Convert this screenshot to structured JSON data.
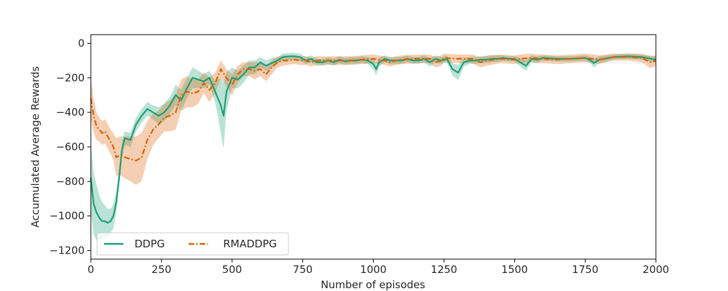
{
  "chart_data": {
    "type": "line",
    "title": "",
    "xlabel": "Number of episodes",
    "ylabel": "Accumulated Average Rewards",
    "xlim": [
      0,
      2000
    ],
    "ylim": [
      -1250,
      50
    ],
    "xticks": [
      0,
      250,
      500,
      750,
      1000,
      1250,
      1500,
      1750,
      2000
    ],
    "yticks": [
      0,
      -200,
      -400,
      -600,
      -800,
      -1000,
      -1200
    ],
    "grid": false,
    "legend": {
      "placement": "lower-left",
      "columns": 2
    },
    "series": [
      {
        "name": "DDPG",
        "color": "#1b9e77",
        "linestyle": "solid",
        "x": [
          0,
          10,
          20,
          30,
          40,
          50,
          60,
          70,
          80,
          90,
          100,
          110,
          120,
          140,
          160,
          180,
          200,
          220,
          240,
          260,
          280,
          300,
          320,
          340,
          360,
          380,
          400,
          420,
          440,
          460,
          470,
          480,
          500,
          520,
          540,
          560,
          580,
          600,
          620,
          640,
          660,
          680,
          700,
          720,
          740,
          760,
          780,
          800,
          820,
          840,
          860,
          880,
          900,
          920,
          940,
          960,
          980,
          1000,
          1010,
          1020,
          1040,
          1060,
          1080,
          1100,
          1120,
          1140,
          1160,
          1180,
          1200,
          1220,
          1240,
          1260,
          1280,
          1300,
          1310,
          1320,
          1340,
          1360,
          1380,
          1400,
          1420,
          1440,
          1460,
          1480,
          1500,
          1520,
          1540,
          1560,
          1580,
          1600,
          1650,
          1700,
          1750,
          1770,
          1780,
          1800,
          1850,
          1900,
          1950,
          2000
        ],
        "values": [
          -780,
          -930,
          -980,
          -1010,
          -1030,
          -1030,
          -1040,
          -1030,
          -1000,
          -920,
          -780,
          -620,
          -550,
          -560,
          -470,
          -420,
          -380,
          -400,
          -420,
          -400,
          -360,
          -300,
          -330,
          -260,
          -200,
          -210,
          -220,
          -200,
          -280,
          -360,
          -420,
          -280,
          -200,
          -210,
          -180,
          -140,
          -140,
          -110,
          -130,
          -115,
          -100,
          -80,
          -75,
          -75,
          -80,
          -100,
          -90,
          -110,
          -110,
          -100,
          -110,
          -95,
          -105,
          -100,
          -100,
          -95,
          -100,
          -120,
          -150,
          -110,
          -90,
          -100,
          -100,
          -100,
          -90,
          -100,
          -100,
          -90,
          -110,
          -90,
          -100,
          -90,
          -150,
          -170,
          -140,
          -110,
          -100,
          -100,
          -95,
          -95,
          -90,
          -90,
          -85,
          -90,
          -90,
          -110,
          -130,
          -90,
          -95,
          -85,
          -90,
          -90,
          -85,
          -100,
          -115,
          -95,
          -80,
          -75,
          -80,
          -95
        ],
        "band": [
          200,
          180,
          160,
          130,
          110,
          90,
          80,
          70,
          70,
          60,
          50,
          50,
          40,
          40,
          40,
          40,
          40,
          40,
          50,
          50,
          50,
          60,
          60,
          60,
          60,
          50,
          40,
          40,
          60,
          160,
          190,
          110,
          60,
          50,
          50,
          40,
          40,
          30,
          30,
          30,
          20,
          20,
          20,
          20,
          20,
          20,
          20,
          20,
          20,
          20,
          20,
          20,
          20,
          20,
          20,
          20,
          20,
          30,
          35,
          25,
          20,
          20,
          20,
          20,
          20,
          20,
          20,
          20,
          25,
          20,
          20,
          20,
          35,
          45,
          35,
          25,
          20,
          20,
          20,
          20,
          20,
          20,
          15,
          15,
          15,
          25,
          30,
          20,
          20,
          15,
          15,
          15,
          15,
          20,
          25,
          20,
          15,
          15,
          15,
          20
        ]
      },
      {
        "name": "RMADDPG",
        "color": "#d95f02",
        "linestyle": "dashdot",
        "x": [
          0,
          10,
          20,
          30,
          40,
          50,
          60,
          70,
          80,
          90,
          100,
          120,
          140,
          160,
          180,
          200,
          220,
          240,
          260,
          280,
          300,
          320,
          340,
          360,
          380,
          400,
          420,
          440,
          460,
          480,
          500,
          520,
          540,
          560,
          580,
          600,
          620,
          640,
          660,
          680,
          700,
          720,
          740,
          760,
          780,
          800,
          840,
          880,
          920,
          960,
          1000,
          1040,
          1060,
          1080,
          1100,
          1150,
          1200,
          1220,
          1240,
          1250,
          1300,
          1350,
          1380,
          1400,
          1450,
          1500,
          1550,
          1600,
          1650,
          1700,
          1750,
          1780,
          1800,
          1850,
          1900,
          1950,
          1980,
          2000
        ],
        "values": [
          -320,
          -420,
          -480,
          -500,
          -520,
          -510,
          -540,
          -570,
          -600,
          -660,
          -650,
          -660,
          -670,
          -680,
          -660,
          -560,
          -500,
          -470,
          -430,
          -420,
          -400,
          -300,
          -280,
          -290,
          -280,
          -230,
          -270,
          -230,
          -150,
          -200,
          -240,
          -180,
          -150,
          -150,
          -160,
          -150,
          -180,
          -140,
          -110,
          -100,
          -100,
          -95,
          -100,
          -100,
          -110,
          -100,
          -100,
          -100,
          -100,
          -95,
          -90,
          -100,
          -110,
          -100,
          -95,
          -90,
          -90,
          -110,
          -100,
          -85,
          -90,
          -90,
          -110,
          -100,
          -90,
          -95,
          -85,
          -90,
          -95,
          -90,
          -85,
          -90,
          -95,
          -80,
          -80,
          -85,
          -110,
          -100
        ],
        "band": [
          120,
          100,
          80,
          70,
          70,
          70,
          70,
          70,
          80,
          110,
          110,
          120,
          130,
          140,
          140,
          110,
          90,
          80,
          80,
          90,
          100,
          90,
          90,
          80,
          70,
          60,
          70,
          60,
          50,
          50,
          60,
          50,
          40,
          40,
          50,
          40,
          40,
          40,
          30,
          30,
          25,
          25,
          25,
          25,
          25,
          25,
          25,
          25,
          25,
          25,
          25,
          25,
          25,
          25,
          25,
          25,
          25,
          30,
          30,
          25,
          25,
          25,
          30,
          30,
          25,
          25,
          25,
          25,
          25,
          25,
          25,
          25,
          25,
          20,
          20,
          25,
          35,
          30
        ]
      }
    ]
  }
}
